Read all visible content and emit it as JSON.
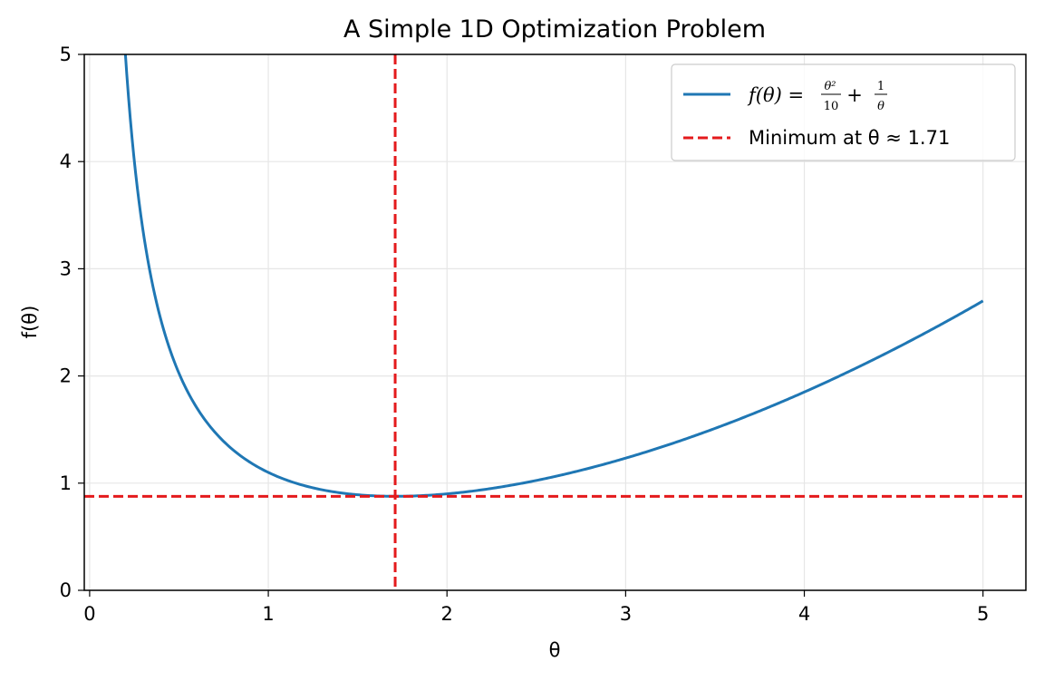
{
  "chart_data": {
    "type": "line",
    "title": "A Simple 1D Optimization Problem",
    "xlabel": "θ",
    "ylabel": "f(θ)",
    "xlim": [
      -0.03,
      5.24
    ],
    "ylim": [
      0,
      5
    ],
    "xticks": [
      0,
      1,
      2,
      3,
      4,
      5
    ],
    "yticks": [
      0,
      1,
      2,
      3,
      4,
      5
    ],
    "xtick_labels": [
      "0",
      "1",
      "2",
      "3",
      "4",
      "5"
    ],
    "ytick_labels": [
      "0",
      "1",
      "2",
      "3",
      "4",
      "5"
    ],
    "grid": true,
    "legend_position": "top-right",
    "series": [
      {
        "name": "f(θ) = θ²/10 + 1/θ",
        "function": "theta^2/10 + 1/theta",
        "x_range": [
          0.1,
          5.0
        ],
        "color": "#1f77b4",
        "style": "solid"
      }
    ],
    "reference_lines": [
      {
        "orientation": "vertical",
        "value": 1.71,
        "color": "#e41a1c",
        "style": "dashed"
      },
      {
        "orientation": "horizontal",
        "value": 0.877,
        "color": "#e41a1c",
        "style": "dashed"
      }
    ],
    "legend": [
      {
        "label_parts": {
          "lhs": "f(θ) = ",
          "frac1_num": "θ²",
          "frac1_den": "10",
          "plus": "+",
          "frac2_num": "1",
          "frac2_den": "θ"
        },
        "style": "solid",
        "color": "#1f77b4"
      },
      {
        "label": "Minimum at θ ≈ 1.71",
        "style": "dashed",
        "color": "#e41a1c"
      }
    ]
  }
}
